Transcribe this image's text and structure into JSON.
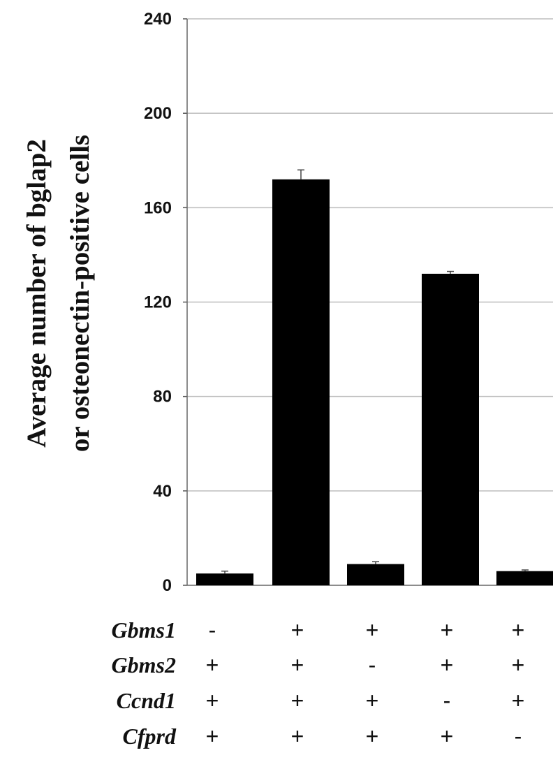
{
  "chart_data": {
    "type": "bar",
    "ylabel_lines": [
      "Average number of bglap2",
      "or osteonectin-positive cells"
    ],
    "yticks": [
      "0",
      "40",
      "80",
      "120",
      "160",
      "200",
      "240"
    ],
    "ylim": [
      0,
      240
    ],
    "grid": true,
    "legend": "none",
    "values": [
      5,
      172,
      9,
      132,
      6
    ],
    "errors": [
      1,
      4,
      1,
      1,
      0.5
    ],
    "bar_color": "#000000",
    "condition_rows": [
      {
        "label": "Gbms1",
        "signs": [
          "-",
          "+",
          "+",
          "+",
          "+"
        ]
      },
      {
        "label": "Gbms2",
        "signs": [
          "+",
          "+",
          "-",
          "+",
          "+"
        ]
      },
      {
        "label": "Ccnd1",
        "signs": [
          "+",
          "+",
          "+",
          "-",
          "+"
        ]
      },
      {
        "label": "Cfprd",
        "signs": [
          "+",
          "+",
          "+",
          "+",
          "-"
        ]
      }
    ]
  }
}
